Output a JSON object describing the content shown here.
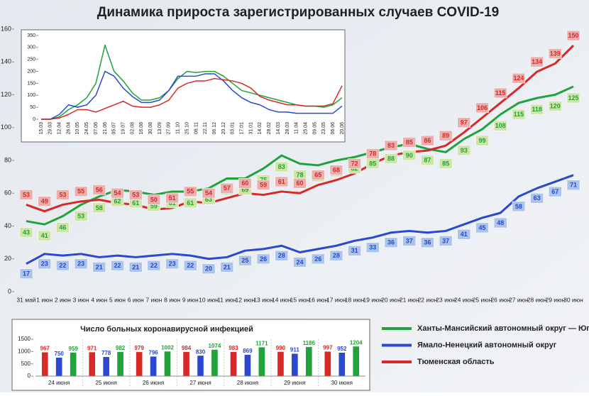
{
  "chart_data": [
    {
      "type": "line",
      "title": "Динамика прироста зарегистрированных случаев COVID-19",
      "categories": [
        "31 май",
        "1 июн",
        "2 июн",
        "3 июн",
        "4 июн",
        "5 июн",
        "6 июн",
        "7 июн",
        "8 июн",
        "9 июн",
        "10 июн",
        "11 июн",
        "12 июн",
        "13 июн",
        "14 июн",
        "15 июн",
        "16 июн",
        "17 июн",
        "18 июн",
        "19 июн",
        "20 июн",
        "21 июн",
        "22 июн",
        "23 июн",
        "24 июн",
        "25 июн",
        "26 июн",
        "27 июн",
        "28 июн",
        "29 июн",
        "30 июн"
      ],
      "series": [
        {
          "name": "Ханты-Мансийский автономный округ — Югра",
          "color": "#1fa33a",
          "values": [
            43,
            41,
            46,
            53,
            58,
            62,
            61,
            59,
            61,
            61,
            63,
            69,
            69,
            75,
            83,
            78,
            77,
            80,
            82,
            85,
            88,
            90,
            87,
            85,
            93,
            99,
            108,
            115,
            118,
            120,
            125
          ]
        },
        {
          "name": "Ямало-Ненецкий автономный округ",
          "color": "#2a48d0",
          "values": [
            17,
            23,
            22,
            23,
            21,
            22,
            21,
            22,
            23,
            22,
            20,
            21,
            25,
            26,
            28,
            24,
            26,
            28,
            31,
            33,
            36,
            37,
            36,
            37,
            41,
            45,
            48,
            58,
            63,
            67,
            71
          ]
        },
        {
          "name": "Тюменская область",
          "color": "#d82828",
          "values": [
            53,
            49,
            53,
            55,
            56,
            54,
            53,
            50,
            51,
            55,
            54,
            57,
            60,
            59,
            61,
            60,
            65,
            68,
            72,
            78,
            83,
            85,
            86,
            89,
            97,
            106,
            115,
            124,
            134,
            139,
            150
          ]
        }
      ],
      "ylim": [
        0,
        160
      ],
      "yticks": [
        0,
        20,
        40,
        60,
        80,
        100,
        120,
        140,
        160
      ],
      "grid": false,
      "data_labels": true,
      "legend": "lower right"
    },
    {
      "type": "line",
      "categories": [
        "15.03",
        "29.03",
        "12.04",
        "26.04",
        "10.05",
        "24.05",
        "07.06",
        "21.06",
        "05.07",
        "19.07",
        "02.08",
        "16.08",
        "30.08",
        "13.09",
        "27.09",
        "11.10",
        "25.10",
        "08.11",
        "22.11",
        "06.12",
        "20.12",
        "03.01",
        "17.01",
        "31.01",
        "14.02",
        "28.02",
        "14.03",
        "28.03",
        "11.04",
        "25.04",
        "09.05",
        "23.05",
        "06.06",
        "20.06"
      ],
      "series": [
        {
          "color": "#1fa33a",
          "values": [
            0,
            0,
            10,
            40,
            60,
            90,
            150,
            310,
            200,
            160,
            110,
            80,
            80,
            90,
            120,
            170,
            200,
            195,
            200,
            200,
            180,
            150,
            120,
            110,
            100,
            90,
            80,
            70,
            60,
            55,
            55,
            50,
            60,
            90
          ]
        },
        {
          "color": "#2a48d0",
          "values": [
            0,
            0,
            20,
            60,
            50,
            60,
            100,
            200,
            180,
            130,
            95,
            70,
            70,
            80,
            120,
            180,
            180,
            180,
            190,
            190,
            160,
            120,
            90,
            70,
            60,
            40,
            30,
            30,
            25,
            25,
            25,
            25,
            25,
            55
          ]
        },
        {
          "color": "#d82828",
          "values": [
            0,
            0,
            5,
            20,
            40,
            40,
            30,
            45,
            60,
            75,
            55,
            50,
            50,
            60,
            80,
            130,
            150,
            160,
            160,
            170,
            165,
            160,
            150,
            130,
            95,
            80,
            70,
            60,
            60,
            55,
            55,
            55,
            65,
            140
          ]
        }
      ],
      "ylim": [
        0,
        350
      ],
      "yticks": [
        0,
        50,
        100,
        150,
        200,
        250,
        300,
        350
      ],
      "grid": false
    },
    {
      "type": "bar",
      "title": "Число больных коронавирусной инфекцией",
      "categories": [
        "24 июня",
        "25 июня",
        "26 июня",
        "27 июня",
        "28 июня",
        "29 июня",
        "30 июня"
      ],
      "series": [
        {
          "color": "#d82828",
          "values": [
            967,
            971,
            979,
            984,
            983,
            990,
            997
          ]
        },
        {
          "color": "#2a48d0",
          "values": [
            750,
            778,
            796,
            830,
            869,
            911,
            952
          ]
        },
        {
          "color": "#1fa33a",
          "values": [
            959,
            982,
            1002,
            1074,
            1171,
            1186,
            1204
          ]
        }
      ],
      "ylim": [
        0,
        1500
      ],
      "yticks": [
        0,
        500,
        1000,
        1500
      ],
      "grid": false,
      "data_labels": true
    }
  ]
}
